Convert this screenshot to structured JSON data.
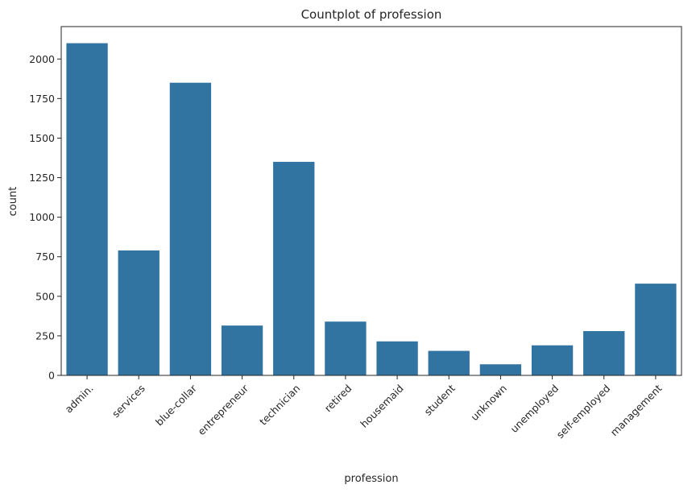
{
  "chart_data": {
    "type": "bar",
    "title": "Countplot of profession",
    "xlabel": "profession",
    "ylabel": "count",
    "categories": [
      "admin.",
      "services",
      "blue-collar",
      "entrepreneur",
      "technician",
      "retired",
      "housemaid",
      "student",
      "unknown",
      "unemployed",
      "self-employed",
      "management"
    ],
    "values": [
      2100,
      790,
      1850,
      315,
      1350,
      340,
      215,
      155,
      70,
      190,
      280,
      580
    ],
    "yticks": [
      0,
      250,
      500,
      750,
      1000,
      1250,
      1500,
      1750,
      2000
    ],
    "ylim": [
      0,
      2205
    ],
    "grid": false,
    "bar_color": "#3274a1"
  }
}
